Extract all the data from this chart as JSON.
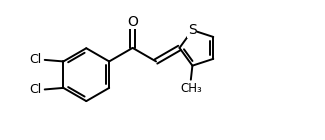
{
  "background": "#ffffff",
  "line_color": "#000000",
  "line_width": 1.4,
  "font_size": 10,
  "xlim": [
    0,
    9.5
  ],
  "ylim": [
    -0.5,
    4.0
  ]
}
